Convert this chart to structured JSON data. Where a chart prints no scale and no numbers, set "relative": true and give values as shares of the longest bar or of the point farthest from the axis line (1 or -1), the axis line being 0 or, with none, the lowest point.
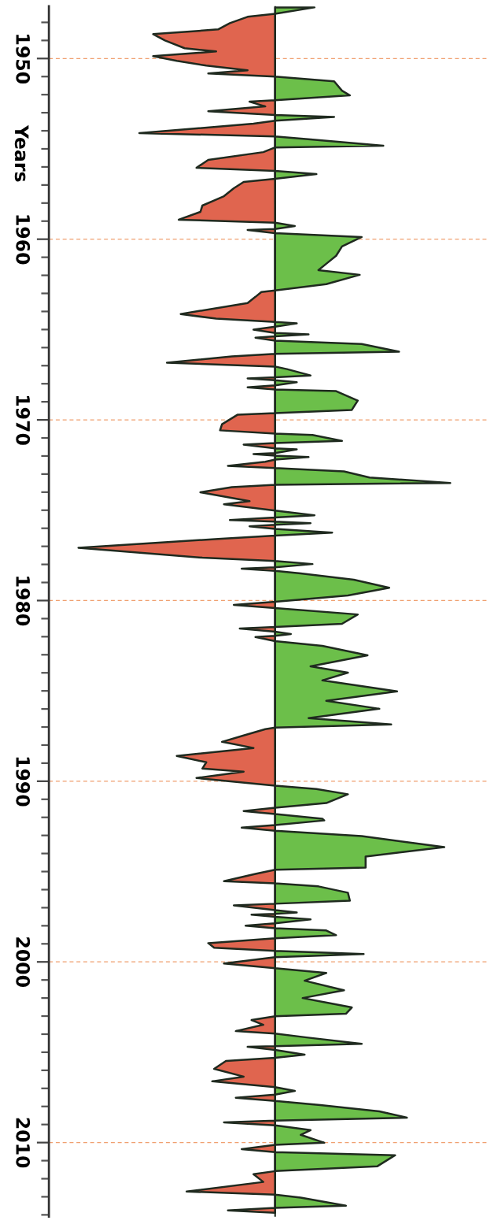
{
  "chart_data": {
    "type": "area",
    "orientation": "horizontal",
    "relative": true,
    "ylabel": "Years",
    "grid": "y",
    "tick_labels": "y",
    "ylim": [
      2014.1,
      1947.1
    ],
    "yticks": [
      1950,
      1960,
      1970,
      1980,
      1990,
      2000,
      2010
    ],
    "series": [
      {
        "color": "#6cbf4a",
        "x": [
          1947.17,
          1947.52,
          1951.0,
          1951.26,
          1951.78,
          1952.04,
          1952.31,
          1953.13,
          1953.23,
          1953.44,
          1954.31,
          1954.48,
          1954.83,
          1954.92,
          1956.22,
          1956.4,
          1956.66,
          1959.09,
          1959.27,
          1959.44,
          1959.67,
          1959.88,
          1960.4,
          1960.92,
          1961.36,
          1961.71,
          1961.97,
          1962.49,
          1962.84,
          1964.58,
          1964.66,
          1964.84,
          1965.19,
          1965.27,
          1965.38,
          1965.62,
          1965.8,
          1966.23,
          1966.35,
          1967.05,
          1967.19,
          1967.54,
          1967.64,
          1967.81,
          1967.92,
          1968.09,
          1968.32,
          1968.41,
          1968.93,
          1969.45,
          1969.63,
          1970.76,
          1970.84,
          1971.16,
          1971.28,
          1971.58,
          1971.63,
          1971.84,
          1971.98,
          1972.06,
          1972.2,
          1972.67,
          1972.85,
          1973.19,
          1973.49,
          1973.59,
          1975.02,
          1975.28,
          1975.4,
          1975.63,
          1975.72,
          1975.81,
          1976.03,
          1976.24,
          1976.41,
          1977.81,
          1977.98,
          1978.16,
          1978.36,
          1978.5,
          1978.85,
          1979.29,
          1979.72,
          1980.07,
          1980.42,
          1980.77,
          1981.29,
          1981.46,
          1981.72,
          1981.85,
          1981.95,
          1982.25,
          1982.51,
          1983.03,
          1983.64,
          1983.99,
          1984.42,
          1985.03,
          1985.55,
          1985.99,
          1986.51,
          1986.86,
          1987.03,
          1990.25,
          1990.43,
          1990.72,
          1991.21,
          1991.47,
          1991.82,
          1992.08,
          1992.17,
          1992.43,
          1992.74,
          1993.04,
          1993.65,
          1994.17,
          1994.78,
          1994.9,
          1995.65,
          1995.82,
          1996.17,
          1996.61,
          1996.78,
          1997.13,
          1997.27,
          1997.34,
          1997.51,
          1997.65,
          1997.86,
          1998.14,
          1998.26,
          1998.52,
          1998.69,
          1999.39,
          1999.56,
          1999.74,
          2000.35,
          2000.61,
          2001.04,
          2001.57,
          2002.0,
          2002.52,
          2002.87,
          2003.01,
          2003.97,
          2004.18,
          2004.53,
          2004.67,
          2004.87,
          2005.13,
          2005.31,
          2006.93,
          2007.14,
          2007.35,
          2007.69,
          2007.92,
          2008.27,
          2008.62,
          2008.79,
          2009.05,
          2009.31,
          2009.57,
          2010.01,
          2010.13,
          2010.53,
          2010.7,
          2011.31,
          2011.58,
          2012.88,
          2013.05,
          2013.49,
          2013.61
        ],
        "values": [
          0.2,
          0,
          0,
          0.3,
          0.34,
          0.38,
          0,
          0,
          0.3,
          0,
          0,
          0.18,
          0.55,
          0,
          0,
          0.21,
          0,
          0,
          0.1,
          0,
          0,
          0.44,
          0.34,
          0.31,
          0.26,
          0.22,
          0.43,
          0.26,
          0,
          0,
          0.11,
          0,
          0,
          0.17,
          0,
          0,
          0.44,
          0.63,
          0,
          0,
          0.06,
          0.18,
          0,
          0,
          0.11,
          0,
          0,
          0.31,
          0.42,
          0.39,
          0,
          0,
          0.19,
          0.34,
          0,
          0,
          0.11,
          0,
          0,
          0.17,
          0,
          0,
          0.35,
          0.48,
          0.89,
          0,
          0,
          0.2,
          0,
          0,
          0.18,
          0,
          0,
          0.29,
          0,
          0,
          0.19,
          0,
          0,
          0.13,
          0.4,
          0.58,
          0.37,
          0,
          0,
          0.42,
          0.34,
          0,
          0,
          0.08,
          0,
          0,
          0.24,
          0.47,
          0.18,
          0.37,
          0.24,
          0.62,
          0.26,
          0.53,
          0.17,
          0.59,
          0,
          0,
          0.21,
          0.37,
          0.26,
          0,
          0,
          0.24,
          0.25,
          0,
          0,
          0.44,
          0.86,
          0.46,
          0.46,
          0,
          0,
          0.22,
          0.37,
          0.38,
          0,
          0,
          0.11,
          0,
          0,
          0.18,
          0,
          0,
          0.26,
          0.31,
          0,
          0,
          0.45,
          0,
          0,
          0.26,
          0.15,
          0.35,
          0.14,
          0.39,
          0.36,
          0,
          0,
          0.16,
          0.44,
          0,
          0,
          0.15,
          0,
          0,
          0.1,
          0,
          0,
          0.23,
          0.53,
          0.67,
          0,
          0,
          0.18,
          0.13,
          0.25,
          0,
          0,
          0.61,
          0.52,
          0,
          0,
          0.13,
          0.36,
          0
        ]
      },
      {
        "color": "#e0654f",
        "x": [
          1947.52,
          1947.69,
          1948.04,
          1948.39,
          1948.65,
          1949.0,
          1949.43,
          1949.61,
          1949.87,
          1950.13,
          1950.39,
          1950.65,
          1950.83,
          1951.0,
          1952.31,
          1952.39,
          1952.65,
          1952.92,
          1953.13,
          1953.44,
          1953.61,
          1954.13,
          1954.31,
          1954.92,
          1955.18,
          1955.61,
          1956.05,
          1956.22,
          1956.66,
          1956.83,
          1957.18,
          1957.62,
          1958.14,
          1958.49,
          1958.92,
          1959.09,
          1959.44,
          1959.49,
          1959.67,
          1962.84,
          1962.92,
          1963.19,
          1963.53,
          1964.14,
          1964.4,
          1964.58,
          1964.84,
          1965.01,
          1965.19,
          1965.38,
          1965.45,
          1965.62,
          1966.35,
          1966.49,
          1966.84,
          1967.05,
          1967.64,
          1967.71,
          1967.81,
          1968.09,
          1968.2,
          1968.32,
          1969.63,
          1969.71,
          1970.24,
          1970.58,
          1970.76,
          1971.28,
          1971.37,
          1971.58,
          1971.84,
          1971.89,
          1971.98,
          1972.2,
          1972.32,
          1972.55,
          1972.67,
          1973.59,
          1973.72,
          1974.01,
          1974.5,
          1974.67,
          1975.02,
          1975.4,
          1975.54,
          1975.63,
          1975.81,
          1975.89,
          1976.03,
          1976.41,
          1976.59,
          1977.08,
          1977.63,
          1977.81,
          1978.16,
          1978.24,
          1978.36,
          1980.07,
          1980.24,
          1980.42,
          1981.46,
          1981.55,
          1981.72,
          1981.95,
          1982.02,
          1982.25,
          1987.03,
          1987.12,
          1987.47,
          1987.82,
          1988.16,
          1988.6,
          1988.95,
          1989.3,
          1989.47,
          1989.82,
          1990.25,
          1991.47,
          1991.65,
          1991.82,
          1992.43,
          1992.57,
          1992.74,
          1994.9,
          1995.13,
          1995.53,
          1995.65,
          1996.78,
          1996.87,
          1997.13,
          1997.34,
          1997.39,
          1997.51,
          1997.86,
          1998.0,
          1998.14,
          1998.69,
          1998.96,
          1999.22,
          1999.39,
          1999.74,
          2000.09,
          2000.35,
          2003.01,
          2003.22,
          2003.48,
          2003.83,
          2003.97,
          2004.67,
          2004.7,
          2004.87,
          2005.31,
          2005.48,
          2005.92,
          2006.35,
          2006.61,
          2006.93,
          2007.35,
          2007.52,
          2007.69,
          2008.79,
          2008.88,
          2009.05,
          2010.13,
          2010.36,
          2010.53,
          2011.58,
          2011.75,
          2012.18,
          2012.71,
          2012.88,
          2013.61,
          2013.75,
          2013.89
        ],
        "values": [
          0,
          -0.14,
          -0.23,
          -0.29,
          -0.62,
          -0.56,
          -0.46,
          -0.3,
          -0.62,
          -0.5,
          -0.35,
          -0.14,
          -0.34,
          0,
          0,
          -0.13,
          -0.05,
          -0.34,
          0,
          0,
          -0.11,
          -0.69,
          0,
          0,
          -0.06,
          -0.34,
          -0.4,
          0,
          0,
          -0.16,
          -0.21,
          -0.26,
          -0.37,
          -0.38,
          -0.49,
          0,
          0,
          -0.14,
          0,
          0,
          -0.07,
          -0.1,
          -0.14,
          -0.48,
          -0.3,
          0,
          0,
          -0.11,
          0,
          0,
          -0.1,
          0,
          0,
          -0.22,
          -0.55,
          0,
          0,
          -0.14,
          0,
          0,
          -0.14,
          0,
          0,
          -0.19,
          -0.27,
          -0.28,
          0,
          0,
          -0.16,
          0,
          0,
          -0.11,
          0,
          0,
          -0.05,
          -0.24,
          0,
          0,
          -0.22,
          -0.38,
          -0.13,
          -0.26,
          0,
          0,
          -0.23,
          0,
          0,
          -0.13,
          0,
          0,
          -0.29,
          -1.0,
          -0.37,
          0,
          0,
          -0.17,
          0,
          0,
          -0.21,
          0,
          0,
          -0.18,
          0,
          0,
          -0.1,
          0,
          0,
          -0.05,
          -0.16,
          -0.27,
          -0.11,
          -0.5,
          -0.35,
          -0.37,
          -0.16,
          -0.4,
          0,
          0,
          -0.16,
          0,
          0,
          -0.17,
          0,
          0,
          -0.1,
          -0.26,
          0,
          0,
          -0.21,
          0,
          0,
          -0.12,
          0,
          0,
          -0.15,
          0,
          0,
          -0.34,
          -0.31,
          0,
          0,
          -0.26,
          0,
          0,
          -0.12,
          -0.06,
          -0.2,
          0,
          0,
          -0.14,
          0,
          0,
          -0.25,
          -0.31,
          -0.16,
          -0.32,
          0,
          0,
          -0.2,
          0,
          0,
          -0.26,
          0,
          0,
          -0.17,
          0,
          0,
          -0.11,
          -0.06,
          -0.45,
          0,
          0,
          -0.24,
          0
        ]
      }
    ]
  }
}
